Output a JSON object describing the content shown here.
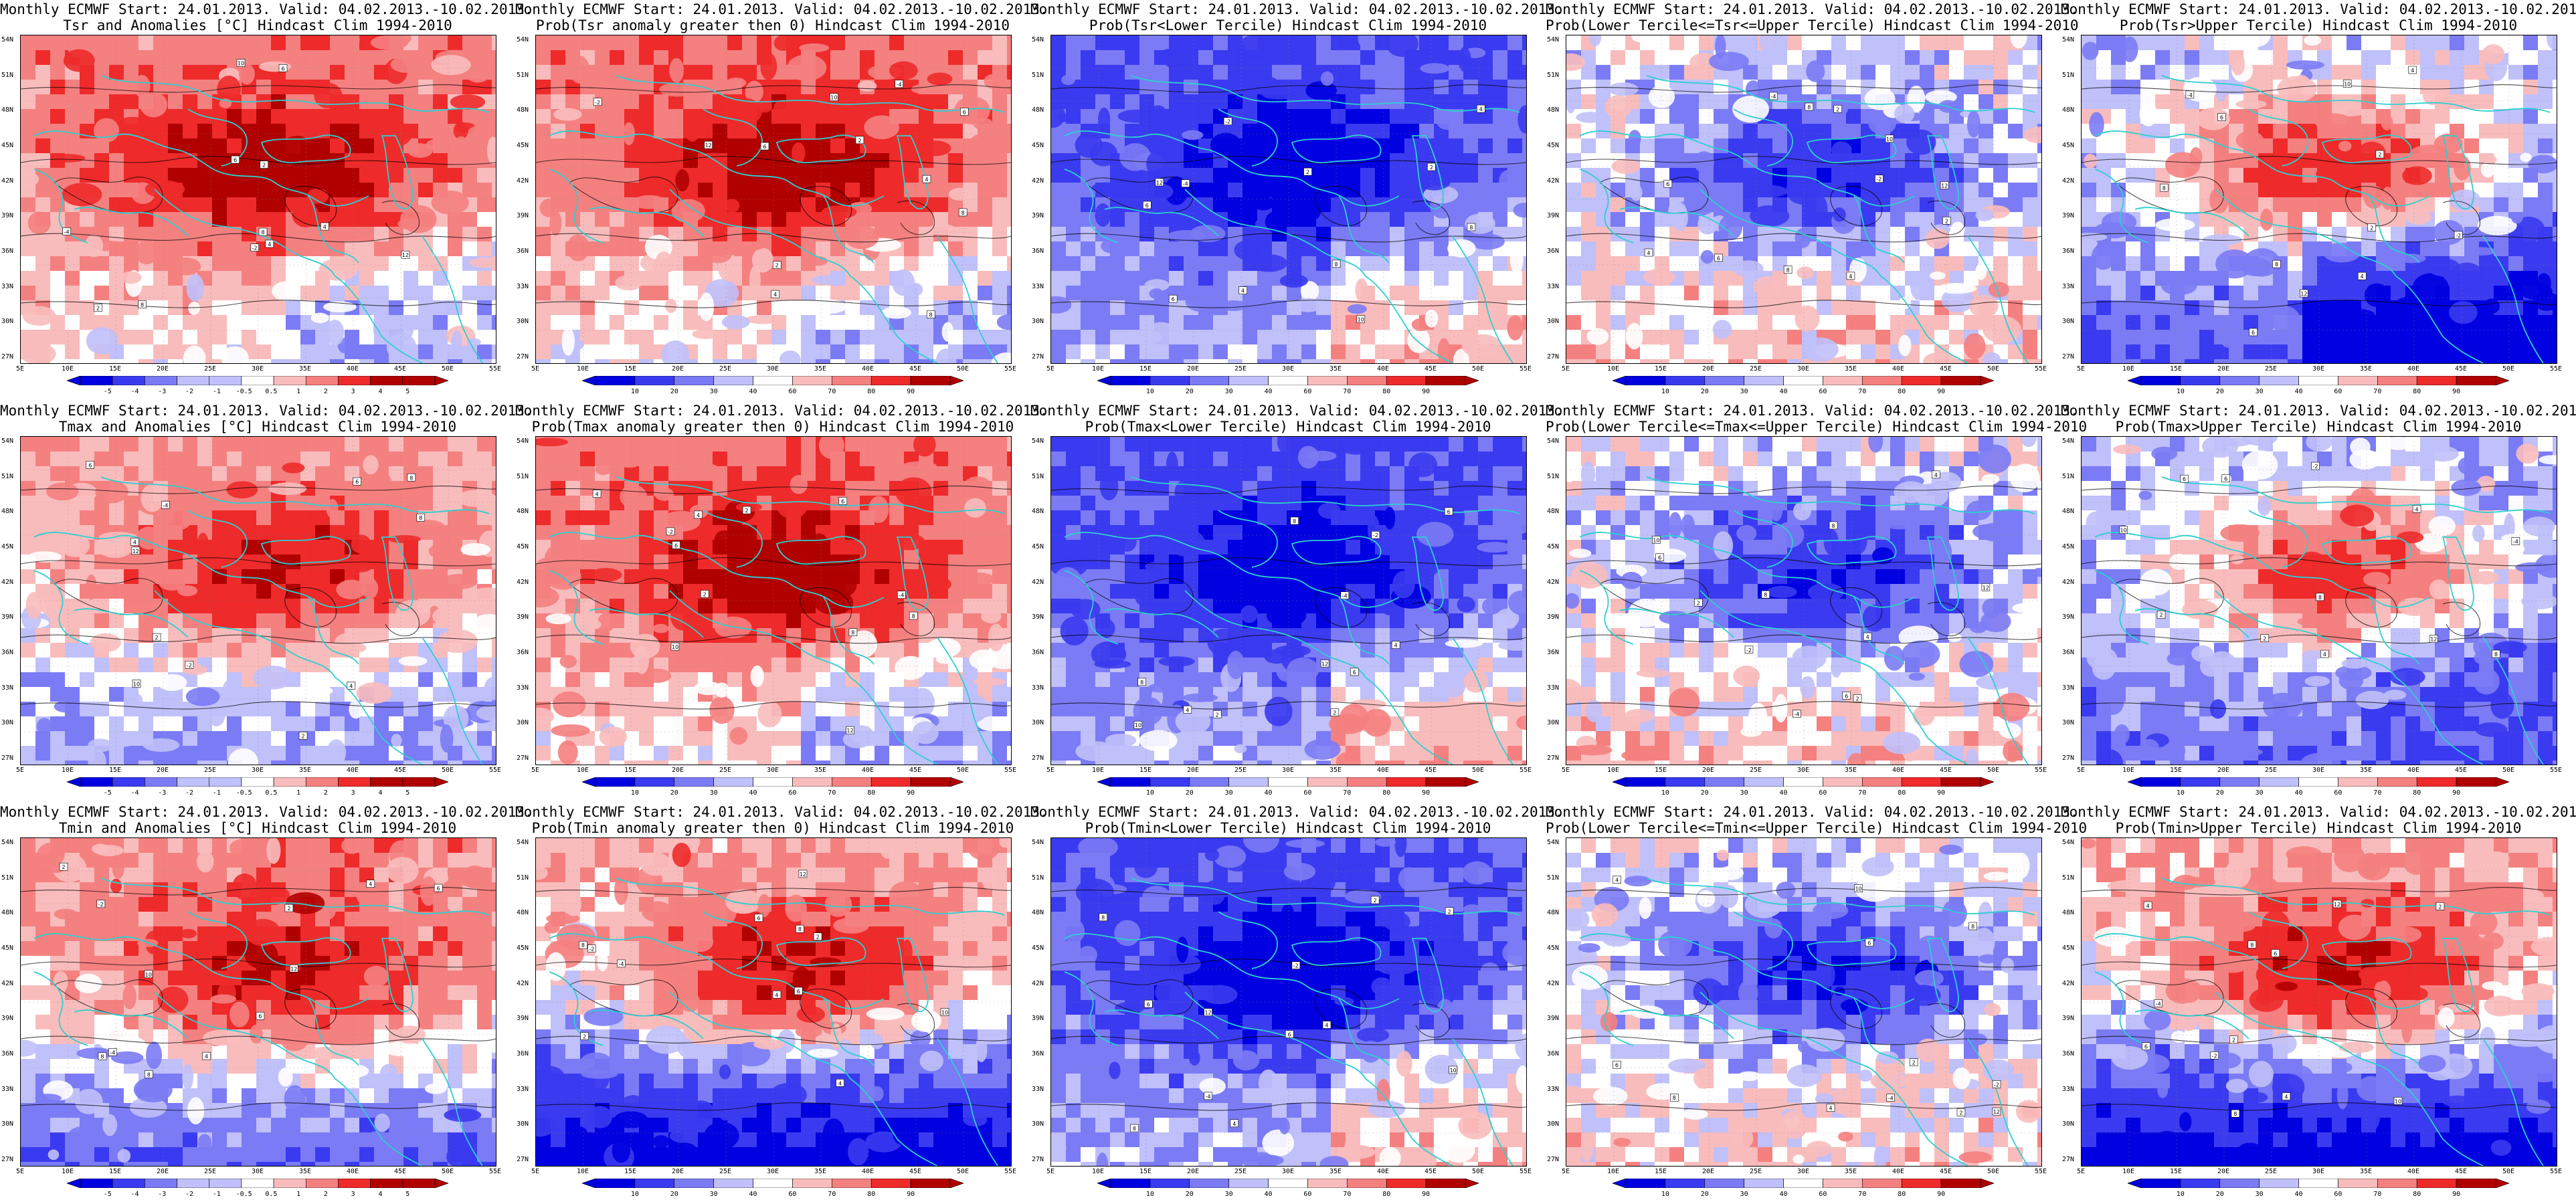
{
  "figure": {
    "common_title": "Monthly ECMWF Start: 24.01.2013. Valid: 04.02.2013.-10.02.2013.",
    "lat_labels": [
      "54N",
      "51N",
      "48N",
      "45N",
      "42N",
      "39N",
      "36N",
      "33N",
      "30N",
      "27N"
    ],
    "lon_labels": [
      "5E",
      "10E",
      "15E",
      "20E",
      "25E",
      "30E",
      "35E",
      "40E",
      "45E",
      "50E",
      "55E"
    ],
    "anomaly_colorbar_labels": [
      "-5",
      "-4",
      "-3",
      "-2",
      "-1",
      "-0.5",
      "0.5",
      "1",
      "2",
      "3",
      "4",
      "5"
    ],
    "probability_colorbar_labels": [
      "10",
      "20",
      "30",
      "40",
      "60",
      "70",
      "80",
      "90"
    ],
    "colors": {
      "dark_blue": "#0000e0",
      "blue": "#3a3af0",
      "mid_blue": "#7b7bf5",
      "light_blue": "#c0c0fa",
      "white": "#ffffff",
      "light_red": "#f9bcbc",
      "mid_red": "#f58080",
      "red": "#ee2a2a",
      "dark_red": "#b00000",
      "coast": "#2ecfd0",
      "contour": "#000000"
    }
  },
  "rows": [
    {
      "variable": "Tsr",
      "panels": [
        {
          "subtitle": "Tsr and Anomalies [°C] Hindcast Clim 1994-2010",
          "kind": "anomaly",
          "scheme": "red-strong"
        },
        {
          "subtitle": "Prob(Tsr anomaly greater then 0) Hindcast Clim 1994-2010",
          "kind": "probability",
          "scheme": "red-strong"
        },
        {
          "subtitle": "Prob(Tsr<Lower Tercile) Hindcast Clim 1994-2010",
          "kind": "probability",
          "scheme": "blue-strong"
        },
        {
          "subtitle": "Prob(Lower Tercile<=Tsr<=Upper Tercile) Hindcast Clim 1994-2010",
          "kind": "probability",
          "scheme": "blue-mixed"
        },
        {
          "subtitle": "Prob(Tsr>Upper Tercile) Hindcast Clim 1994-2010",
          "kind": "probability",
          "scheme": "red-south-blue"
        }
      ]
    },
    {
      "variable": "Tmax",
      "panels": [
        {
          "subtitle": "Tmax and Anomalies [°C] Hindcast Clim 1994-2010",
          "kind": "anomaly",
          "scheme": "red-medium"
        },
        {
          "subtitle": "Prob(Tmax anomaly greater then 0) Hindcast Clim 1994-2010",
          "kind": "probability",
          "scheme": "red-strong"
        },
        {
          "subtitle": "Prob(Tmax<Lower Tercile) Hindcast Clim 1994-2010",
          "kind": "probability",
          "scheme": "blue-strong"
        },
        {
          "subtitle": "Prob(Lower Tercile<=Tmax<=Upper Tercile) Hindcast Clim 1994-2010",
          "kind": "probability",
          "scheme": "blue-mixed"
        },
        {
          "subtitle": "Prob(Tmax>Upper Tercile) Hindcast Clim 1994-2010",
          "kind": "probability",
          "scheme": "red-light"
        }
      ]
    },
    {
      "variable": "Tmin",
      "panels": [
        {
          "subtitle": "Tmin and Anomalies [°C] Hindcast Clim 1994-2010",
          "kind": "anomaly",
          "scheme": "red-north"
        },
        {
          "subtitle": "Prob(Tmin anomaly greater then 0) Hindcast Clim 1994-2010",
          "kind": "probability",
          "scheme": "red-north-blue-south"
        },
        {
          "subtitle": "Prob(Tmin<Lower Tercile) Hindcast Clim 1994-2010",
          "kind": "probability",
          "scheme": "blue-strong"
        },
        {
          "subtitle": "Prob(Lower Tercile<=Tmin<=Upper Tercile) Hindcast Clim 1994-2010",
          "kind": "probability",
          "scheme": "blue-mixed"
        },
        {
          "subtitle": "Prob(Tmin>Upper Tercile) Hindcast Clim 1994-2010",
          "kind": "probability",
          "scheme": "red-north-blue-south"
        }
      ]
    }
  ]
}
